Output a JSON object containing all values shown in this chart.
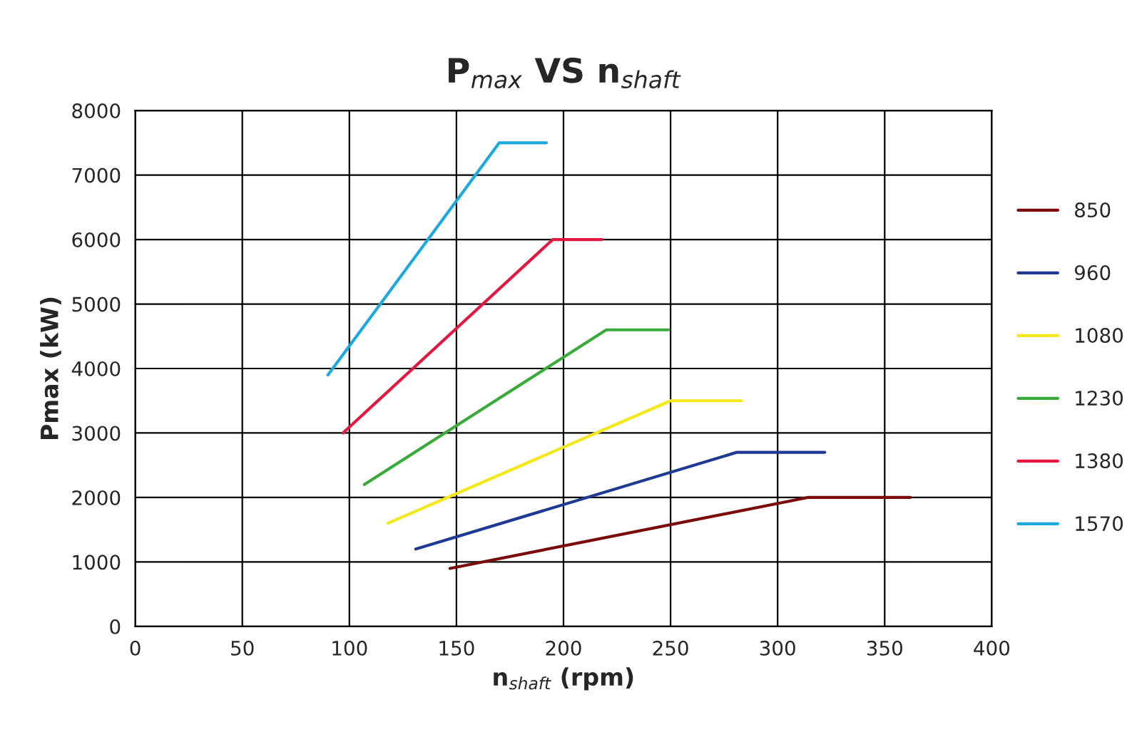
{
  "chart_data": {
    "type": "line",
    "title": "P$_{max}$ VS n$_{shaft}$",
    "xlabel": "n$_{shaft}$ (rpm)",
    "ylabel": "Pmax (kW)",
    "series": [
      {
        "name": "850",
        "color": "#7b0a0a",
        "x": [
          147,
          314,
          362
        ],
        "values": [
          900,
          2000,
          2000
        ]
      },
      {
        "name": "960",
        "color": "#1f3a93",
        "x": [
          131,
          281,
          322
        ],
        "values": [
          1200,
          2700,
          2700
        ]
      },
      {
        "name": "1080",
        "color": "#f5e81a",
        "x": [
          118,
          250,
          283
        ],
        "values": [
          1600,
          3500,
          3500
        ]
      },
      {
        "name": "1230",
        "color": "#3aab3a",
        "x": [
          107,
          220,
          249
        ],
        "values": [
          2200,
          4600,
          4600
        ]
      },
      {
        "name": "1380",
        "color": "#e3173f",
        "x": [
          97,
          195,
          218
        ],
        "values": [
          3000,
          6000,
          6000
        ]
      },
      {
        "name": "1570",
        "color": "#1ea8e0",
        "x": [
          90,
          170,
          192
        ],
        "values": [
          3900,
          7500,
          7500
        ]
      }
    ],
    "xlim": [
      0,
      400
    ],
    "xticks": [
      0,
      50,
      100,
      150,
      200,
      250,
      300,
      350,
      400
    ],
    "ylim": [
      0,
      8000
    ],
    "yticks": [
      0,
      1000,
      2000,
      3000,
      4000,
      5000,
      6000,
      7000,
      8000
    ],
    "grid": true,
    "legend": "right",
    "marker": "none",
    "line_style": "solid"
  }
}
